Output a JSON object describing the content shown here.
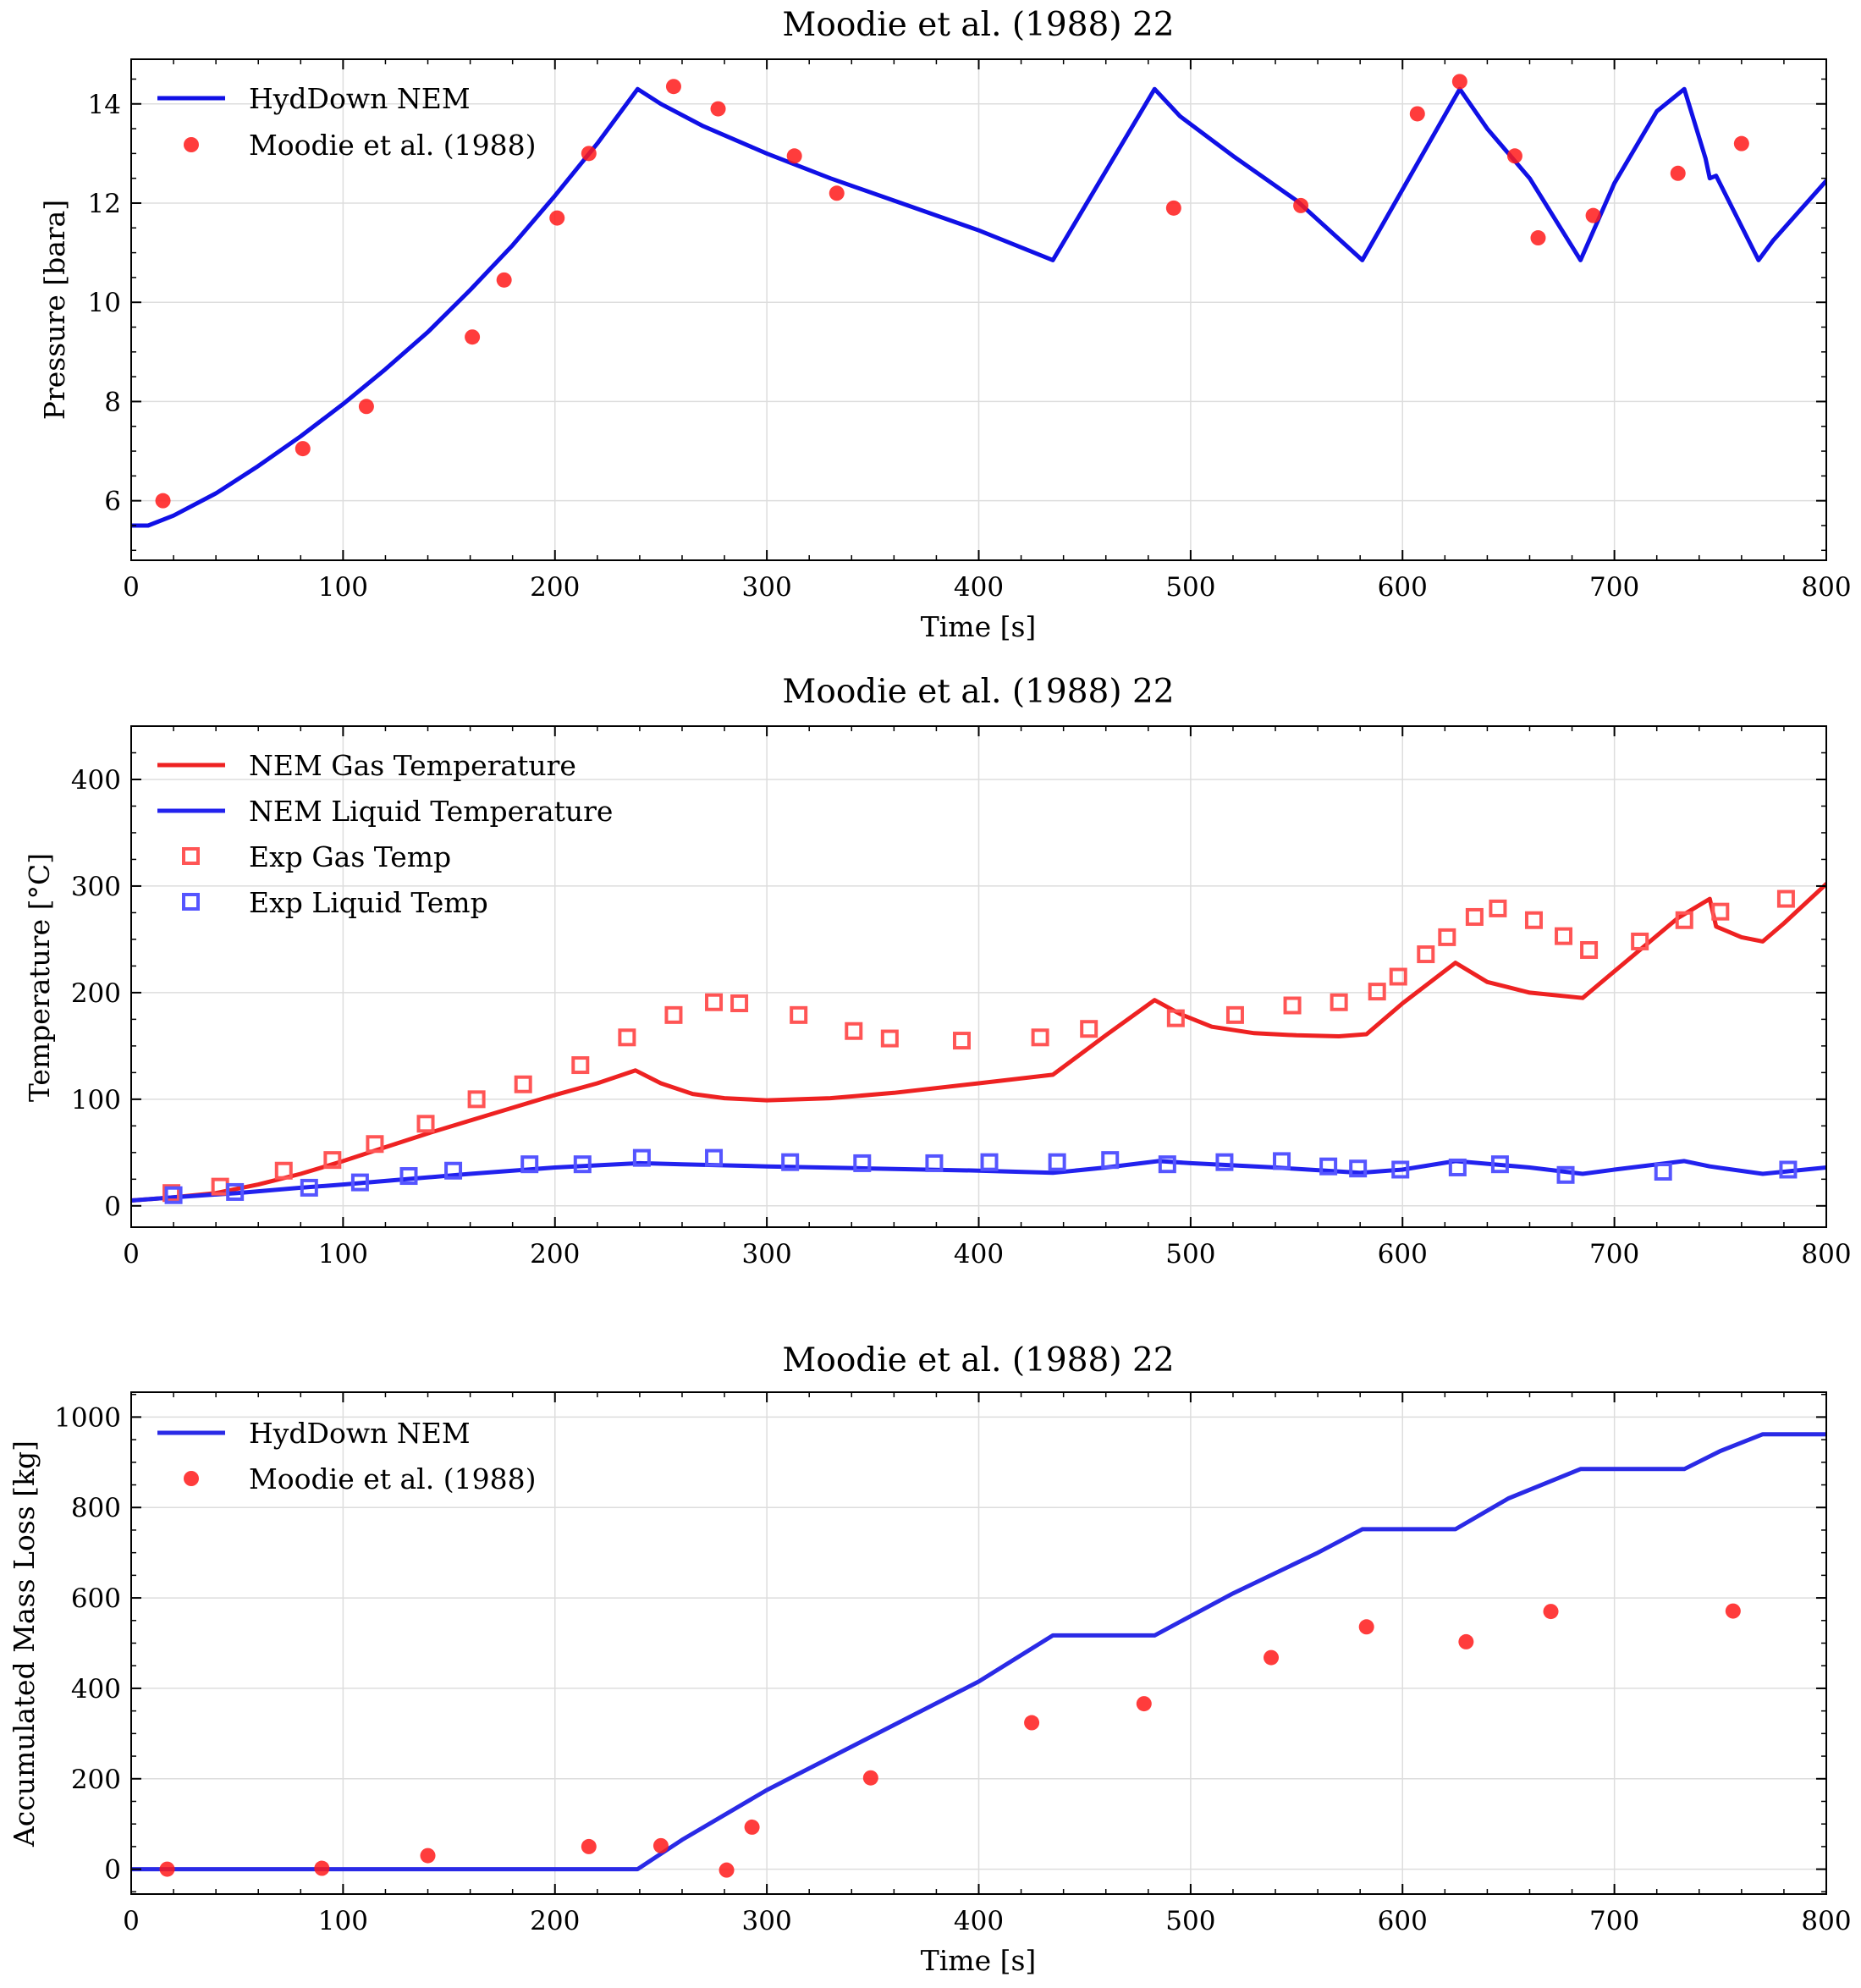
{
  "chart_data": [
    {
      "type": "line",
      "title": "Moodie et al. (1988) 22",
      "xlabel": "Time [s]",
      "ylabel": "Pressure [bara]",
      "xlim": [
        0,
        800
      ],
      "ylim": [
        4.8,
        14.9
      ],
      "xticks": [
        0,
        100,
        200,
        300,
        400,
        500,
        600,
        700,
        800
      ],
      "yticks": [
        6,
        8,
        10,
        12,
        14
      ],
      "grid": true,
      "legend_position": "top-left",
      "colors": {
        "model": "#1010e6",
        "experiment": "#ff1a1a"
      },
      "series": [
        {
          "name": "HydDown NEM",
          "kind": "line",
          "color": "#1010e6",
          "x": [
            0,
            8,
            20,
            40,
            60,
            80,
            100,
            120,
            140,
            160,
            180,
            200,
            220,
            239,
            250,
            270,
            300,
            330,
            360,
            400,
            435,
            483,
            495,
            520,
            550,
            581,
            627,
            640,
            660,
            684,
            700,
            720,
            733,
            743,
            745,
            748,
            768,
            775,
            800
          ],
          "y": [
            5.5,
            5.5,
            5.7,
            6.15,
            6.7,
            7.3,
            7.95,
            8.65,
            9.4,
            10.25,
            11.15,
            12.15,
            13.2,
            14.3,
            14.0,
            13.55,
            13.0,
            12.5,
            12.05,
            11.45,
            10.85,
            14.3,
            13.75,
            12.95,
            12.05,
            10.85,
            14.3,
            13.5,
            12.5,
            10.85,
            12.4,
            13.85,
            14.3,
            12.9,
            12.5,
            12.55,
            10.85,
            11.25,
            12.45
          ]
        },
        {
          "name": "Moodie et al. (1988)",
          "kind": "scatter",
          "color": "#ff1a1a",
          "x": [
            15,
            81,
            111,
            161,
            176,
            201,
            216,
            256,
            277,
            313,
            333,
            492,
            552,
            607,
            627,
            653,
            664,
            690,
            730,
            760
          ],
          "y": [
            6.0,
            7.05,
            7.9,
            9.3,
            10.45,
            11.7,
            13.0,
            14.35,
            13.9,
            12.95,
            12.2,
            11.9,
            11.95,
            13.8,
            14.45,
            12.95,
            11.3,
            11.75,
            12.6,
            13.2
          ]
        }
      ]
    },
    {
      "type": "line",
      "title": "Moodie et al. (1988) 22",
      "xlabel": "",
      "ylabel": "Temperature [°C]",
      "xlim": [
        0,
        800
      ],
      "ylim": [
        -20,
        450
      ],
      "xticks": [
        0,
        100,
        200,
        300,
        400,
        500,
        600,
        700,
        800
      ],
      "yticks": [
        0,
        100,
        200,
        300,
        400
      ],
      "grid": true,
      "legend_position": "top-left",
      "colors": {
        "gas": "#ee2222",
        "liquid": "#2222ee"
      },
      "series": [
        {
          "name": "NEM Gas Temperature",
          "kind": "line",
          "color": "#ee2222",
          "x": [
            0,
            20,
            40,
            60,
            80,
            100,
            120,
            140,
            160,
            180,
            200,
            220,
            238,
            250,
            265,
            280,
            300,
            330,
            360,
            400,
            435,
            460,
            483,
            495,
            510,
            530,
            550,
            570,
            583,
            600,
            625,
            640,
            660,
            685,
            700,
            730,
            745,
            748,
            760,
            770,
            780,
            800
          ],
          "y": [
            5,
            8,
            12,
            20,
            30,
            42,
            55,
            68,
            80,
            92,
            104,
            115,
            127,
            115,
            105,
            101,
            99,
            101,
            106,
            115,
            123,
            160,
            193,
            180,
            168,
            162,
            160,
            159,
            161,
            190,
            228,
            210,
            200,
            195,
            220,
            270,
            288,
            262,
            252,
            248,
            265,
            302
          ]
        },
        {
          "name": "NEM Liquid Temperature",
          "kind": "line",
          "color": "#2222ee",
          "x": [
            0,
            20,
            50,
            80,
            100,
            130,
            160,
            200,
            240,
            260,
            300,
            350,
            400,
            435,
            460,
            485,
            500,
            540,
            580,
            600,
            625,
            660,
            685,
            700,
            733,
            745,
            770,
            800
          ],
          "y": [
            5,
            8,
            12,
            17,
            20,
            25,
            30,
            36,
            40,
            39,
            37,
            35,
            33,
            31,
            36,
            42,
            40,
            36,
            31,
            34,
            42,
            36,
            30,
            34,
            42,
            37,
            30,
            36
          ]
        },
        {
          "name": "Exp Gas Temp",
          "kind": "scatter-square",
          "color": "#ff5555",
          "x": [
            19,
            42,
            72,
            95,
            115,
            139,
            163,
            185,
            212,
            234,
            256,
            275,
            287,
            315,
            341,
            358,
            392,
            429,
            452,
            493,
            521,
            548,
            570,
            588,
            598,
            611,
            621,
            634,
            645,
            662,
            676,
            688,
            712,
            733,
            750,
            781
          ],
          "y": [
            12,
            18,
            33,
            43,
            58,
            77,
            100,
            114,
            132,
            158,
            179,
            191,
            190,
            179,
            164,
            157,
            155,
            158,
            166,
            176,
            179,
            188,
            191,
            201,
            215,
            236,
            252,
            271,
            279,
            268,
            253,
            240,
            248,
            268,
            276,
            288
          ]
        },
        {
          "name": "Exp Liquid Temp",
          "kind": "scatter-square",
          "color": "#5555ff",
          "x": [
            20,
            49,
            84,
            108,
            131,
            152,
            188,
            213,
            241,
            275,
            311,
            345,
            379,
            405,
            437,
            462,
            489,
            516,
            543,
            565,
            579,
            599,
            626,
            646,
            677,
            723,
            782
          ],
          "y": [
            10,
            13,
            17,
            22,
            28,
            33,
            39,
            39,
            45,
            45,
            41,
            40,
            40,
            41,
            41,
            43,
            39,
            41,
            42,
            37,
            35,
            34,
            36,
            39,
            29,
            32,
            34
          ]
        }
      ]
    },
    {
      "type": "line",
      "title": "Moodie et al. (1988) 22",
      "xlabel": "Time [s]",
      "ylabel": "Accumulated Mass Loss [kg]",
      "xlim": [
        0,
        800
      ],
      "ylim": [
        -55,
        1055
      ],
      "xticks": [
        0,
        100,
        200,
        300,
        400,
        500,
        600,
        700,
        800
      ],
      "yticks": [
        0,
        200,
        400,
        600,
        800,
        1000
      ],
      "grid": true,
      "legend_position": "top-left",
      "colors": {
        "model": "#2a2ae6",
        "experiment": "#ff1a1a"
      },
      "series": [
        {
          "name": "HydDown NEM",
          "kind": "line",
          "color": "#2a2ae6",
          "x": [
            0,
            239,
            260,
            300,
            350,
            400,
            435,
            483,
            520,
            560,
            581,
            625,
            650,
            684,
            733,
            750,
            770,
            800
          ],
          "y": [
            0,
            0,
            65,
            175,
            295,
            415,
            517,
            517,
            610,
            700,
            752,
            752,
            820,
            885,
            885,
            925,
            962,
            962
          ]
        },
        {
          "name": "Moodie et al. (1988)",
          "kind": "scatter",
          "color": "#ff1a1a",
          "x": [
            17,
            90,
            140,
            216,
            250,
            281,
            293,
            349,
            425,
            478,
            538,
            583,
            630,
            670,
            756
          ],
          "y": [
            0,
            2,
            30,
            50,
            52,
            -2,
            93,
            202,
            324,
            366,
            468,
            536,
            503,
            570,
            571
          ]
        }
      ]
    }
  ]
}
